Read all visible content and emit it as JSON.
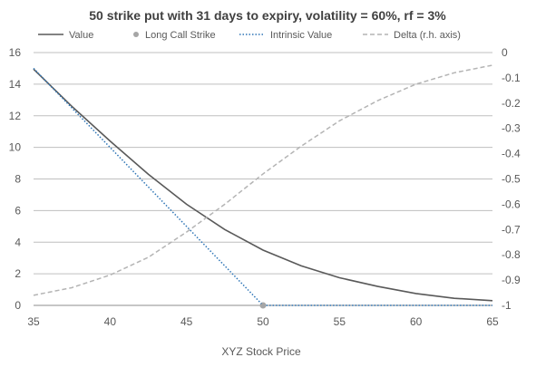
{
  "chart_data": {
    "type": "line",
    "title": "50 strike put with 31 days to expiry, volatility = 60%, rf = 3%",
    "xlabel": "XYZ Stock Price",
    "ylabel": "",
    "ylabel_right": "",
    "xlim": [
      35,
      65
    ],
    "ylim": [
      0,
      16
    ],
    "ylim_right": [
      -1,
      0
    ],
    "x_ticks": [
      "35",
      "40",
      "45",
      "50",
      "55",
      "60",
      "65"
    ],
    "y_ticks": [
      "0",
      "2",
      "4",
      "6",
      "8",
      "10",
      "12",
      "14",
      "16"
    ],
    "y2_ticks": [
      "-1",
      "-0.9",
      "-0.8",
      "-0.7",
      "-0.6",
      "-0.5",
      "-0.4",
      "-0.3",
      "-0.2",
      "-0.1",
      "0"
    ],
    "grid": true,
    "legend_position": "top",
    "series": [
      {
        "name": "Value",
        "axis": "left",
        "style": "solid",
        "color": "#595959",
        "x": [
          35,
          37.5,
          40,
          42.5,
          45,
          47.5,
          50,
          52.5,
          55,
          57.5,
          60,
          62.5,
          65
        ],
        "y": [
          14.95,
          12.6,
          10.4,
          8.3,
          6.4,
          4.8,
          3.5,
          2.5,
          1.75,
          1.2,
          0.75,
          0.45,
          0.3
        ]
      },
      {
        "name": "Long Call Strike",
        "axis": "left",
        "style": "marker",
        "color": "#a6a6a6",
        "x": [
          50
        ],
        "y": [
          0
        ]
      },
      {
        "name": "Intrinsic Value",
        "axis": "left",
        "style": "dotted",
        "color": "#2e75b6",
        "x": [
          35,
          50,
          65
        ],
        "y": [
          15,
          0,
          0
        ]
      },
      {
        "name": "Delta (r.h. axis)",
        "axis": "right",
        "style": "dashed",
        "color": "#b4b4b4",
        "x": [
          35,
          37.5,
          40,
          42.5,
          45,
          47.5,
          50,
          52.5,
          55,
          57.5,
          60,
          62.5,
          65
        ],
        "y": [
          -0.96,
          -0.93,
          -0.88,
          -0.81,
          -0.71,
          -0.6,
          -0.48,
          -0.37,
          -0.27,
          -0.19,
          -0.125,
          -0.08,
          -0.05
        ]
      }
    ]
  }
}
